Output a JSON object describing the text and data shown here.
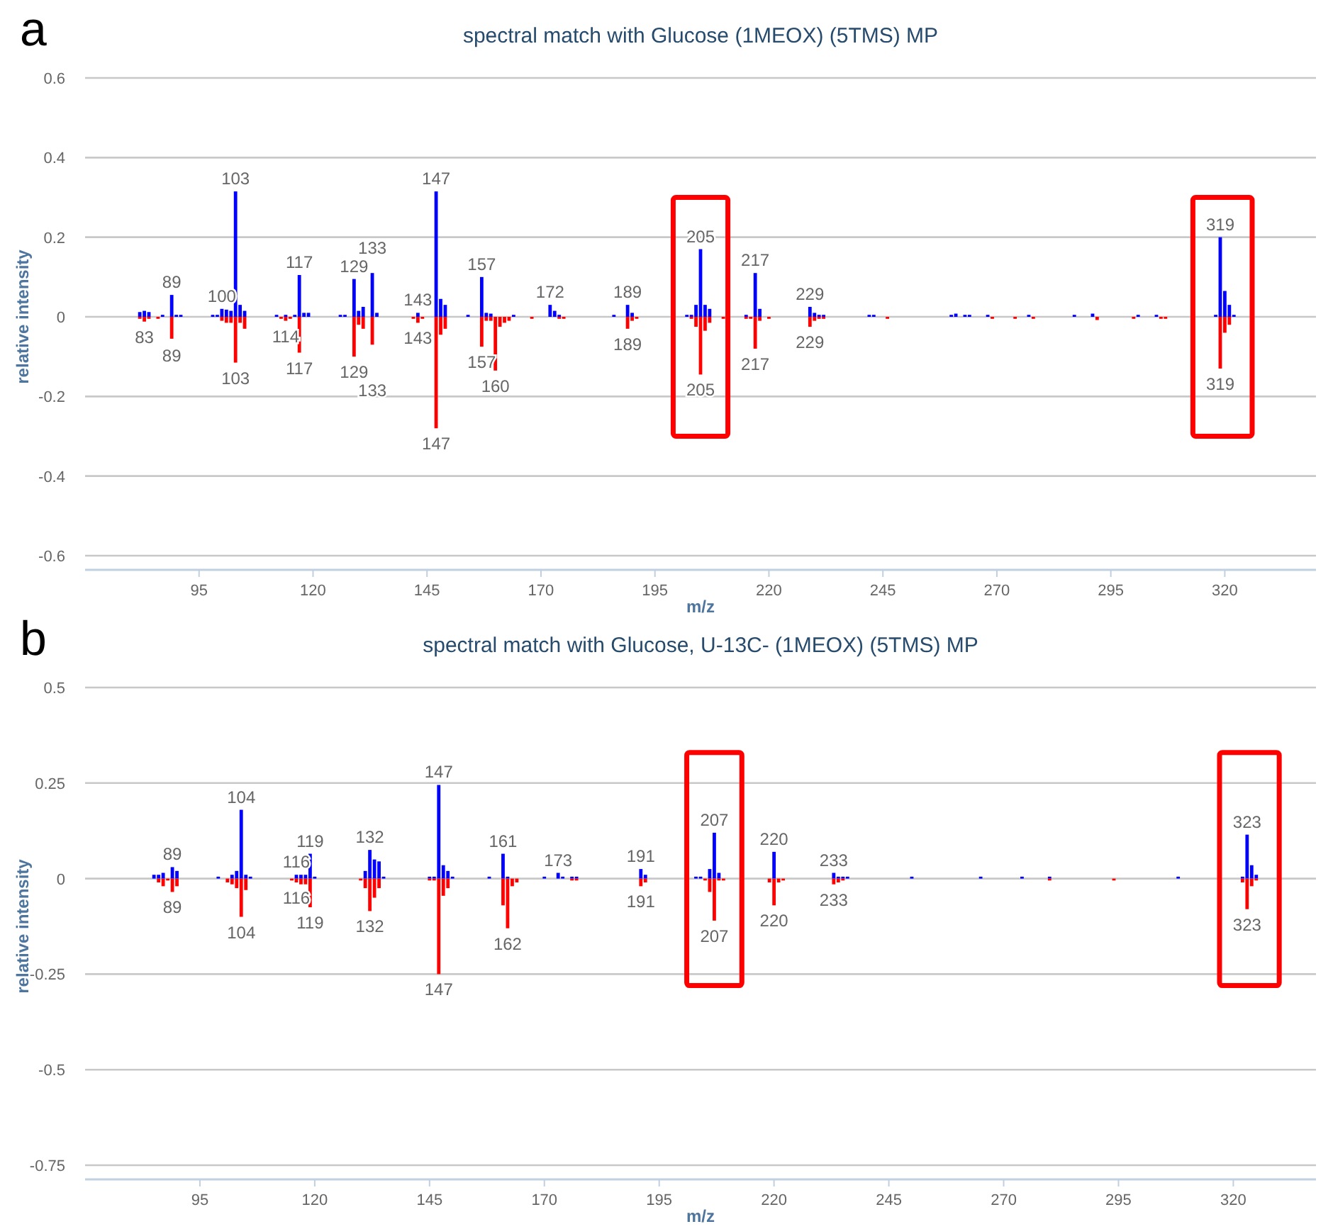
{
  "chart_data": [
    {
      "type": "bar",
      "title": "spectral match with Glucose (1MEOX) (5TMS) MP",
      "xlabel": "m/z",
      "ylabel": "relative intensity",
      "xlim": [
        70,
        340
      ],
      "xticks": [
        95,
        120,
        145,
        170,
        195,
        220,
        245,
        270,
        295,
        320
      ],
      "ylim": [
        -0.6,
        0.6
      ],
      "yticks": [
        -0.6,
        -0.4,
        -0.2,
        0,
        0.2,
        0.4,
        0.6
      ],
      "grid": "y",
      "series": [
        {
          "color": "#0000ff",
          "x": [
            82,
            83,
            84,
            87,
            89,
            90,
            91,
            98,
            99,
            100,
            101,
            102,
            103,
            104,
            105,
            112,
            114,
            116,
            117,
            118,
            119,
            126,
            127,
            129,
            130,
            131,
            133,
            134,
            143,
            147,
            148,
            149,
            154,
            157,
            158,
            159,
            164,
            172,
            173,
            174,
            186,
            189,
            190,
            202,
            203,
            204,
            205,
            206,
            207,
            215,
            217,
            218,
            229,
            230,
            231,
            232,
            242,
            243,
            260,
            261,
            263,
            264,
            268,
            277,
            287,
            291,
            301,
            305,
            318,
            319,
            320,
            321,
            322
          ],
          "values": [
            0.012,
            0.015,
            0.012,
            0.005,
            0.055,
            0.005,
            0.005,
            0.005,
            0.005,
            0.02,
            0.018,
            0.015,
            0.315,
            0.03,
            0.015,
            0.005,
            0.005,
            0.005,
            0.105,
            0.01,
            0.01,
            0.005,
            0.005,
            0.095,
            0.015,
            0.025,
            0.11,
            0.01,
            0.01,
            0.315,
            0.045,
            0.03,
            0.005,
            0.1,
            0.01,
            0.008,
            0.005,
            0.03,
            0.015,
            0.005,
            0.005,
            0.03,
            0.01,
            0.005,
            0.005,
            0.03,
            0.17,
            0.03,
            0.02,
            0.005,
            0.11,
            0.02,
            0.025,
            0.01,
            0.005,
            0.005,
            0.005,
            0.005,
            0.005,
            0.008,
            0.005,
            0.005,
            0.005,
            0.005,
            0.005,
            0.008,
            0.005,
            0.005,
            0.005,
            0.2,
            0.065,
            0.03,
            0.005
          ]
        },
        {
          "color": "#ff0000",
          "x": [
            82,
            83,
            84,
            86,
            89,
            100,
            101,
            102,
            103,
            104,
            105,
            113,
            114,
            115,
            117,
            129,
            130,
            131,
            133,
            142,
            143,
            144,
            147,
            148,
            149,
            157,
            158,
            159,
            160,
            161,
            162,
            163,
            168,
            174,
            175,
            189,
            190,
            191,
            203,
            204,
            205,
            206,
            207,
            210,
            215,
            216,
            217,
            218,
            220,
            229,
            230,
            231,
            232,
            246,
            269,
            274,
            278,
            292,
            300,
            306,
            307,
            319,
            320,
            321
          ],
          "values": [
            -0.005,
            -0.012,
            -0.005,
            -0.005,
            -0.055,
            -0.01,
            -0.015,
            -0.015,
            -0.115,
            -0.015,
            -0.03,
            -0.005,
            -0.01,
            -0.005,
            -0.09,
            -0.1,
            -0.02,
            -0.03,
            -0.07,
            -0.005,
            -0.015,
            -0.005,
            -0.28,
            -0.045,
            -0.03,
            -0.075,
            -0.01,
            -0.01,
            -0.135,
            -0.025,
            -0.015,
            -0.01,
            -0.005,
            -0.005,
            -0.005,
            -0.03,
            -0.01,
            -0.005,
            -0.005,
            -0.025,
            -0.145,
            -0.035,
            -0.015,
            -0.005,
            -0.005,
            -0.005,
            -0.08,
            -0.01,
            -0.005,
            -0.025,
            -0.01,
            -0.005,
            -0.005,
            -0.005,
            -0.005,
            -0.005,
            -0.005,
            -0.008,
            -0.005,
            -0.005,
            -0.005,
            -0.13,
            -0.04,
            -0.02
          ]
        }
      ],
      "annotations": [
        "a",
        {
          "text": "83",
          "x": 83,
          "y": -0.012
        },
        {
          "text": "89",
          "x": 89,
          "y": 0.055
        },
        {
          "text": "89",
          "x": 89,
          "y": -0.055
        },
        {
          "text": "100",
          "x": 100,
          "y": 0.02
        },
        {
          "text": "103",
          "x": 103,
          "y": 0.315
        },
        {
          "text": "103",
          "x": 103,
          "y": -0.115
        },
        {
          "text": "114",
          "x": 114,
          "y": -0.01
        },
        {
          "text": "117",
          "x": 117,
          "y": 0.105
        },
        {
          "text": "117",
          "x": 117,
          "y": -0.09
        },
        {
          "text": "129",
          "x": 129,
          "y": 0.095
        },
        {
          "text": "129",
          "x": 129,
          "y": -0.1
        },
        {
          "text": "133",
          "x": 133,
          "y": 0.11
        },
        {
          "text": "133",
          "x": 133,
          "y": -0.07
        },
        {
          "text": "143",
          "x": 143,
          "y": 0.01
        },
        {
          "text": "143",
          "x": 143,
          "y": -0.015
        },
        {
          "text": "147",
          "x": 147,
          "y": 0.315
        },
        {
          "text": "147",
          "x": 147,
          "y": -0.28
        },
        {
          "text": "157",
          "x": 157,
          "y": 0.1
        },
        {
          "text": "157",
          "x": 157,
          "y": -0.075
        },
        {
          "text": "160",
          "x": 160,
          "y": -0.135
        },
        {
          "text": "172",
          "x": 172,
          "y": 0.03
        },
        {
          "text": "189",
          "x": 189,
          "y": 0.03
        },
        {
          "text": "189",
          "x": 189,
          "y": -0.03
        },
        {
          "text": "205",
          "x": 205,
          "y": 0.17
        },
        {
          "text": "205",
          "x": 205,
          "y": -0.145
        },
        {
          "text": "217",
          "x": 217,
          "y": 0.11
        },
        {
          "text": "217",
          "x": 217,
          "y": -0.08
        },
        {
          "text": "229",
          "x": 229,
          "y": 0.025
        },
        {
          "text": "229",
          "x": 229,
          "y": -0.025
        },
        {
          "text": "319",
          "x": 319,
          "y": 0.2
        },
        {
          "text": "319",
          "x": 319,
          "y": -0.13
        }
      ]
    },
    {
      "type": "bar",
      "title": "spectral match with Glucose, U-13C- (1MEOX) (5TMS) MP",
      "xlabel": "m/z",
      "ylabel": "relative intensity",
      "xlim": [
        70,
        338
      ],
      "xticks": [
        95,
        120,
        145,
        170,
        195,
        220,
        245,
        270,
        295,
        320
      ],
      "ylim": [
        -0.75,
        0.5
      ],
      "yticks": [
        -0.75,
        -0.5,
        -0.25,
        0,
        0.25,
        0.5
      ],
      "grid": "y",
      "series": [
        {
          "color": "#0000ff",
          "x": [
            85,
            86,
            87,
            89,
            90,
            99,
            102,
            103,
            104,
            105,
            106,
            116,
            117,
            118,
            119,
            120,
            131,
            132,
            133,
            134,
            135,
            145,
            146,
            147,
            148,
            149,
            150,
            158,
            161,
            162,
            170,
            173,
            174,
            176,
            177,
            191,
            192,
            203,
            204,
            206,
            207,
            208,
            220,
            233,
            234,
            235,
            236,
            250,
            265,
            274,
            280,
            308,
            322,
            323,
            324,
            325
          ],
          "values": [
            0.01,
            0.01,
            0.015,
            0.03,
            0.02,
            0.005,
            0.01,
            0.02,
            0.18,
            0.01,
            0.005,
            0.01,
            0.01,
            0.01,
            0.065,
            0.005,
            0.02,
            0.075,
            0.05,
            0.045,
            0.005,
            0.005,
            0.005,
            0.245,
            0.035,
            0.02,
            0.005,
            0.005,
            0.065,
            0.005,
            0.005,
            0.015,
            0.005,
            0.005,
            0.005,
            0.025,
            0.01,
            0.005,
            0.005,
            0.025,
            0.12,
            0.015,
            0.07,
            0.015,
            0.005,
            0.005,
            0.005,
            0.005,
            0.005,
            0.005,
            0.005,
            0.005,
            0.005,
            0.115,
            0.035,
            0.01
          ]
        },
        {
          "color": "#ff0000",
          "x": [
            86,
            87,
            88,
            89,
            90,
            101,
            102,
            103,
            104,
            105,
            115,
            116,
            117,
            118,
            119,
            130,
            131,
            132,
            133,
            134,
            145,
            146,
            147,
            148,
            149,
            161,
            162,
            163,
            164,
            176,
            177,
            191,
            192,
            205,
            206,
            207,
            208,
            209,
            219,
            220,
            221,
            222,
            233,
            234,
            235,
            280,
            294,
            322,
            323,
            324,
            325
          ],
          "values": [
            -0.01,
            -0.02,
            -0.005,
            -0.035,
            -0.02,
            -0.01,
            -0.015,
            -0.025,
            -0.1,
            -0.03,
            -0.005,
            -0.01,
            -0.015,
            -0.015,
            -0.075,
            -0.005,
            -0.025,
            -0.085,
            -0.05,
            -0.025,
            -0.005,
            -0.005,
            -0.25,
            -0.045,
            -0.025,
            -0.07,
            -0.13,
            -0.02,
            -0.01,
            -0.005,
            -0.005,
            -0.02,
            -0.01,
            -0.005,
            -0.035,
            -0.11,
            -0.005,
            -0.005,
            -0.01,
            -0.07,
            -0.01,
            -0.005,
            -0.015,
            -0.01,
            -0.005,
            -0.005,
            -0.005,
            -0.01,
            -0.08,
            -0.02,
            -0.005
          ]
        }
      ],
      "annotations": [
        "b",
        {
          "text": "89",
          "x": 89,
          "y": 0.03
        },
        {
          "text": "89",
          "x": 89,
          "y": -0.035
        },
        {
          "text": "104",
          "x": 104,
          "y": 0.18
        },
        {
          "text": "104",
          "x": 104,
          "y": -0.1
        },
        {
          "text": "116",
          "x": 116,
          "y": 0.01
        },
        {
          "text": "116",
          "x": 116,
          "y": -0.01
        },
        {
          "text": "119",
          "x": 119,
          "y": 0.065
        },
        {
          "text": "119",
          "x": 119,
          "y": -0.075
        },
        {
          "text": "132",
          "x": 132,
          "y": 0.075
        },
        {
          "text": "132",
          "x": 132,
          "y": -0.085
        },
        {
          "text": "147",
          "x": 147,
          "y": 0.245
        },
        {
          "text": "147",
          "x": 147,
          "y": -0.25
        },
        {
          "text": "161",
          "x": 161,
          "y": 0.065
        },
        {
          "text": "162",
          "x": 162,
          "y": -0.13
        },
        {
          "text": "173",
          "x": 173,
          "y": 0.015
        },
        {
          "text": "191",
          "x": 191,
          "y": 0.025
        },
        {
          "text": "191",
          "x": 191,
          "y": -0.02
        },
        {
          "text": "207",
          "x": 207,
          "y": 0.12
        },
        {
          "text": "207",
          "x": 207,
          "y": -0.11
        },
        {
          "text": "220",
          "x": 220,
          "y": 0.07
        },
        {
          "text": "220",
          "x": 220,
          "y": -0.07
        },
        {
          "text": "233",
          "x": 233,
          "y": 0.015
        },
        {
          "text": "233",
          "x": 233,
          "y": -0.015
        },
        {
          "text": "323",
          "x": 323,
          "y": 0.115
        },
        {
          "text": "323",
          "x": 323,
          "y": -0.08
        }
      ]
    }
  ]
}
